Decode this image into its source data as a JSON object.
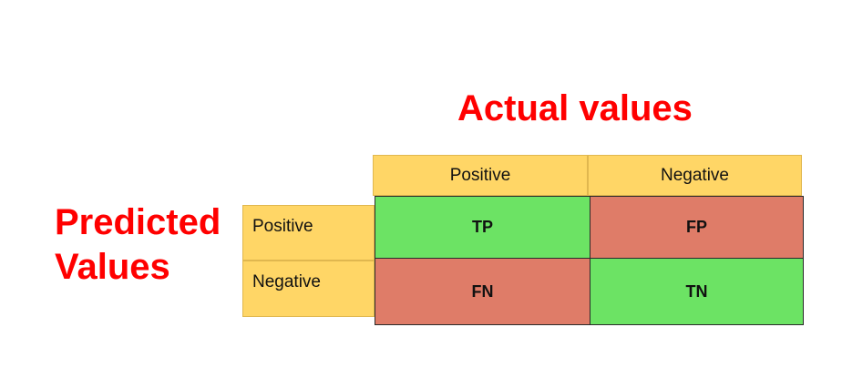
{
  "titles": {
    "actual": "Actual values",
    "predicted_line1": "Predicted",
    "predicted_line2": "Values"
  },
  "column_headers": [
    "Positive",
    "Negative"
  ],
  "row_headers": [
    "Positive",
    "Negative"
  ],
  "cells": {
    "tp": "TP",
    "fp": "FP",
    "fn": "FN",
    "tn": "TN"
  },
  "colors": {
    "title": "#ff0000",
    "header_fill": "#ffd666",
    "correct_fill": "#6ce364",
    "error_fill": "#df7c68"
  }
}
